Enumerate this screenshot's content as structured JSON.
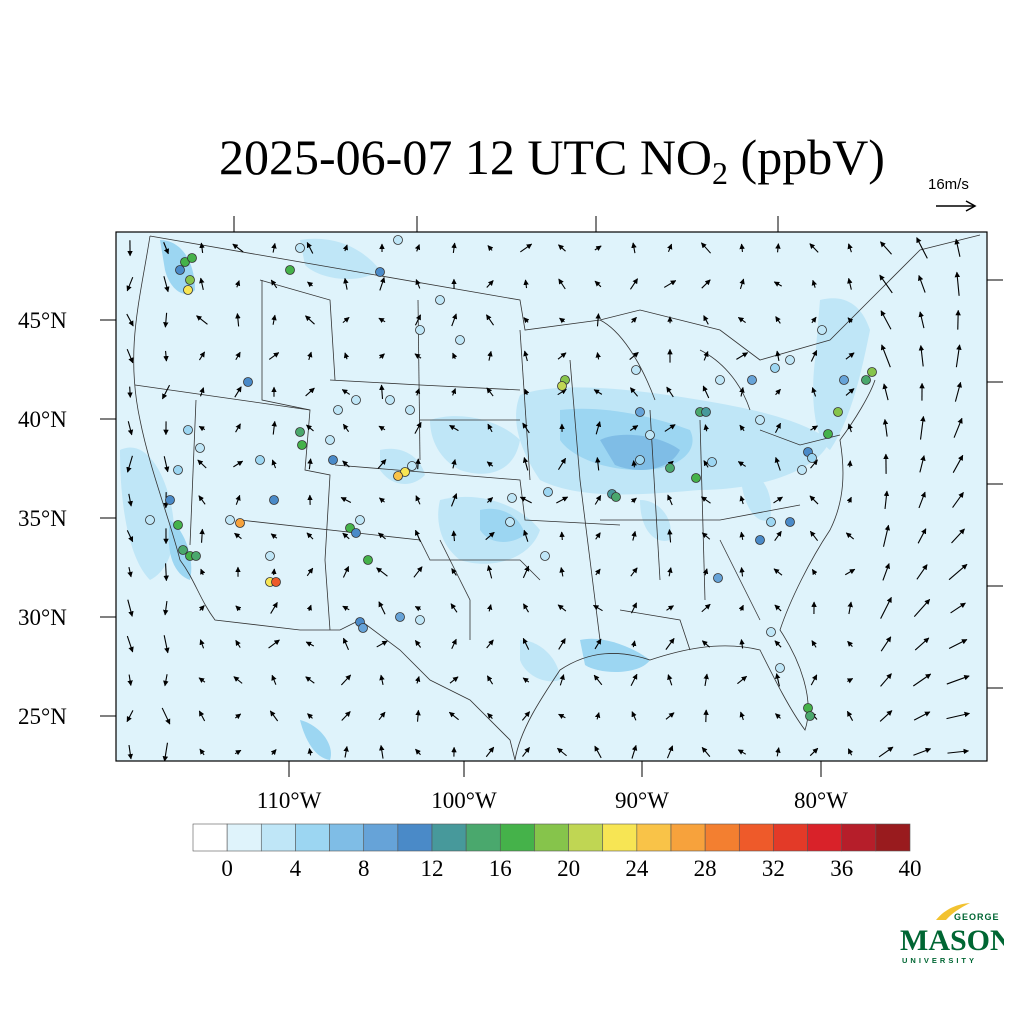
{
  "title": {
    "date": "2025-06-07",
    "hour": "12 UTC",
    "species_main": "NO",
    "species_sub": "2",
    "unit": "(ppbV)"
  },
  "reference_vector": {
    "label": "16m/s",
    "speed_ms": 16
  },
  "lat_labels": [
    "45°N",
    "40°N",
    "35°N",
    "30°N",
    "25°N"
  ],
  "lat_values": [
    45,
    40,
    35,
    30,
    25
  ],
  "lon_labels": [
    "110°W",
    "100°W",
    "90°W",
    "80°W"
  ],
  "lon_values": [
    -110,
    -100,
    -90,
    -80
  ],
  "colorbar": {
    "colors": [
      "#ffffff",
      "#dff3fb",
      "#bfe6f7",
      "#9cd6f2",
      "#7fbde6",
      "#66a3d8",
      "#4a8ac8",
      "#47999b",
      "#4aa86d",
      "#45b24a",
      "#86c44b",
      "#c0d653",
      "#f7e554",
      "#f9c348",
      "#f7a23c",
      "#f37f30",
      "#ee5a2a",
      "#e33a28",
      "#d92229",
      "#b61e2a",
      "#991b1e"
    ],
    "tick_labels": [
      "0",
      "4",
      "8",
      "12",
      "16",
      "20",
      "24",
      "28",
      "32",
      "36",
      "40"
    ]
  },
  "logo": {
    "line1": "GEORGE",
    "line2": "MASON",
    "line3": "UNIVERSITY"
  }
}
